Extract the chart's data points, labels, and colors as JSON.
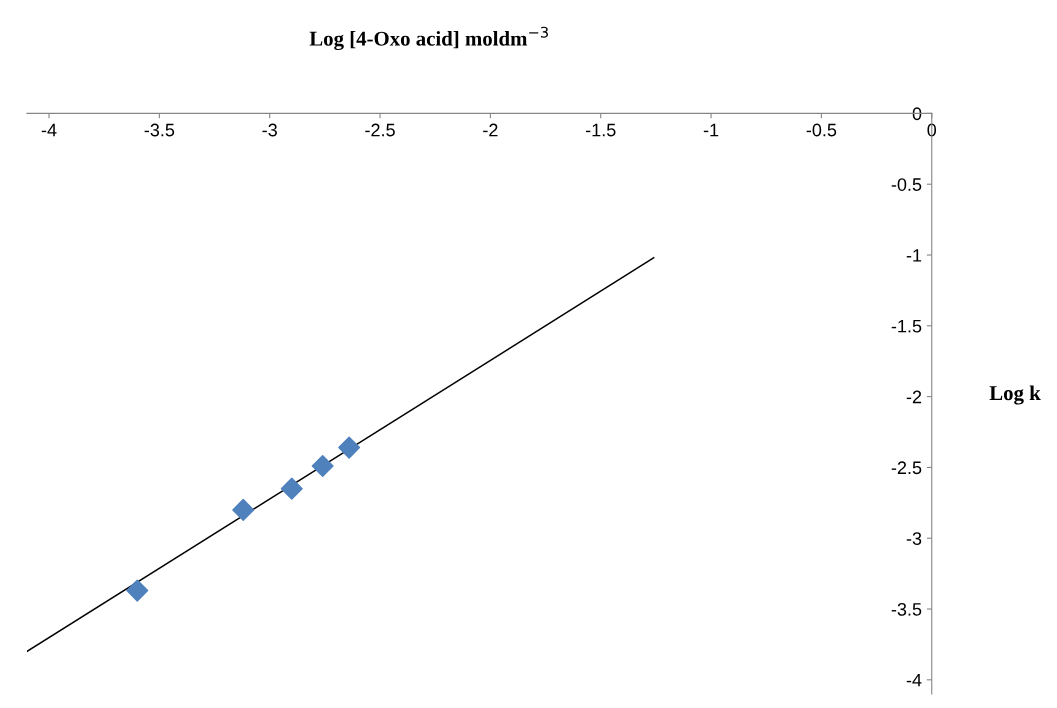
{
  "chart_data": {
    "type": "scatter",
    "xlabel": "Log [4-Oxo acid] moldm$^{−3}$",
    "ylabel": "Log k",
    "x": [
      -3.6,
      -3.12,
      -2.9,
      -2.76,
      -2.64
    ],
    "series": [
      {
        "color": "#4f81bd",
        "marker": "diamond",
        "values": [
          -3.37,
          -2.8,
          -2.65,
          -2.49,
          -2.36
        ]
      },
      {
        "type": "line",
        "color": "#000000",
        "marker": "none",
        "line_style": "solid",
        "x": [
          -4.1,
          -1.26
        ],
        "values": [
          -3.8,
          -1.02
        ]
      }
    ],
    "xlim": [
      -4.1,
      0
    ],
    "ylim": [
      -4.1,
      0
    ],
    "xticks": [
      -4,
      -3.5,
      -3,
      -2.5,
      -2,
      -1.5,
      -1,
      -0.5,
      0
    ],
    "yticks": [
      0,
      -0.5,
      -1,
      -1.5,
      -2,
      -2.5,
      -3,
      -3.5,
      -4
    ],
    "grid": false,
    "legend": false
  }
}
